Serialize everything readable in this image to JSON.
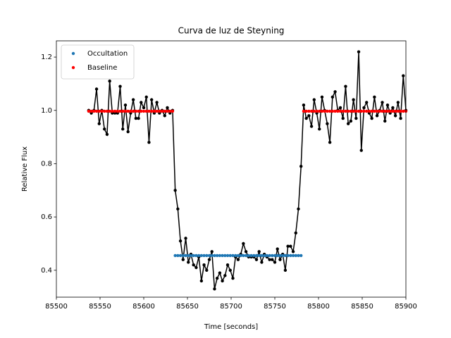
{
  "chart_data": {
    "type": "line",
    "title": "Curva de luz de Steyning",
    "x_label": "Time [seconds]",
    "y_label": "Relative Flux",
    "x": [
      85537,
      85540,
      85543,
      85546,
      85549,
      85552,
      85555,
      85558,
      85561,
      85564,
      85567,
      85570,
      85573,
      85576,
      85579,
      85582,
      85585,
      85588,
      85591,
      85594,
      85597,
      85600,
      85603,
      85606,
      85609,
      85612,
      85615,
      85618,
      85621,
      85624,
      85627,
      85630,
      85633,
      85636,
      85639,
      85642,
      85645,
      85648,
      85651,
      85654,
      85657,
      85660,
      85663,
      85666,
      85669,
      85672,
      85675,
      85678,
      85681,
      85684,
      85687,
      85690,
      85693,
      85696,
      85699,
      85702,
      85705,
      85708,
      85711,
      85714,
      85717,
      85720,
      85723,
      85726,
      85729,
      85732,
      85735,
      85738,
      85741,
      85744,
      85747,
      85750,
      85753,
      85756,
      85759,
      85762,
      85765,
      85768,
      85771,
      85774,
      85777,
      85780,
      85783,
      85786,
      85789,
      85792,
      85795,
      85798,
      85801,
      85804,
      85807,
      85810,
      85813,
      85816,
      85819,
      85822,
      85825,
      85828,
      85831,
      85834,
      85837,
      85840,
      85843,
      85846,
      85849,
      85852,
      85855,
      85858,
      85861,
      85864,
      85867,
      85870,
      85873,
      85876,
      85879,
      85882,
      85885,
      85888,
      85891,
      85894,
      85897,
      85900
    ],
    "series": [
      {
        "color": "#000000",
        "style": "line-dots",
        "values": [
          1.0,
          0.99,
          1.0,
          1.08,
          0.95,
          1.0,
          0.93,
          0.91,
          1.11,
          0.99,
          0.99,
          0.99,
          1.09,
          0.93,
          1.02,
          0.92,
          0.99,
          1.04,
          0.97,
          0.97,
          1.03,
          1.01,
          1.05,
          0.88,
          1.04,
          0.99,
          1.03,
          0.99,
          1.0,
          0.98,
          1.01,
          0.99,
          1.0,
          0.7,
          0.63,
          0.51,
          0.44,
          0.52,
          0.43,
          0.46,
          0.42,
          0.41,
          0.45,
          0.36,
          0.42,
          0.4,
          0.44,
          0.47,
          0.33,
          0.37,
          0.39,
          0.36,
          0.38,
          0.42,
          0.4,
          0.37,
          0.45,
          0.44,
          0.46,
          0.5,
          0.47,
          0.45,
          0.45,
          0.45,
          0.44,
          0.47,
          0.43,
          0.46,
          0.45,
          0.44,
          0.44,
          0.43,
          0.48,
          0.44,
          0.46,
          0.4,
          0.49,
          0.49,
          0.47,
          0.54,
          0.63,
          0.79,
          1.02,
          0.97,
          0.98,
          0.94,
          1.04,
          0.99,
          0.93,
          1.05,
          1.0,
          0.95,
          0.88,
          1.05,
          1.07,
          1.0,
          1.01,
          0.97,
          1.09,
          0.95,
          0.96,
          1.04,
          0.97,
          1.22,
          0.85,
          1.01,
          1.03,
          0.99,
          0.97,
          1.05,
          0.98,
          1.0,
          1.03,
          0.96,
          1.02,
          0.99,
          1.01,
          0.98,
          1.03,
          0.97,
          1.13,
          1.0
        ]
      },
      {
        "name": "Occultation",
        "color": "#1f77b4",
        "style": "dots",
        "values": [
          null,
          null,
          null,
          null,
          null,
          null,
          null,
          null,
          null,
          null,
          null,
          null,
          null,
          null,
          null,
          null,
          null,
          null,
          null,
          null,
          null,
          null,
          null,
          null,
          null,
          null,
          null,
          null,
          null,
          null,
          null,
          null,
          null,
          0.455,
          0.455,
          0.455,
          0.455,
          0.455,
          0.455,
          0.455,
          0.455,
          0.455,
          0.455,
          0.455,
          0.455,
          0.455,
          0.455,
          0.455,
          0.455,
          0.455,
          0.455,
          0.455,
          0.455,
          0.455,
          0.455,
          0.455,
          0.455,
          0.455,
          0.455,
          0.455,
          0.455,
          0.455,
          0.455,
          0.455,
          0.455,
          0.455,
          0.455,
          0.455,
          0.455,
          0.455,
          0.455,
          0.455,
          0.455,
          0.455,
          0.455,
          0.455,
          0.455,
          0.455,
          0.455,
          0.455,
          0.455,
          0.455,
          null,
          null,
          null,
          null,
          null,
          null,
          null,
          null,
          null,
          null,
          null,
          null,
          null,
          null,
          null,
          null,
          null,
          null,
          null,
          null,
          null,
          null,
          null,
          null,
          null,
          null,
          null,
          null,
          null,
          null,
          null,
          null,
          null,
          null,
          null,
          null,
          null,
          null,
          null,
          null
        ]
      },
      {
        "name": "Baseline",
        "color": "#ff0000",
        "style": "dots",
        "values": [
          0.997,
          0.997,
          0.997,
          0.997,
          0.997,
          0.997,
          0.997,
          0.997,
          0.997,
          0.997,
          0.997,
          0.997,
          0.997,
          0.997,
          0.997,
          0.997,
          0.997,
          0.997,
          0.997,
          0.997,
          0.997,
          0.997,
          0.997,
          0.997,
          0.997,
          0.997,
          0.997,
          0.997,
          0.997,
          0.997,
          0.997,
          0.997,
          0.997,
          null,
          null,
          null,
          null,
          null,
          null,
          null,
          null,
          null,
          null,
          null,
          null,
          null,
          null,
          null,
          null,
          null,
          null,
          null,
          null,
          null,
          null,
          null,
          null,
          null,
          null,
          null,
          null,
          null,
          null,
          null,
          null,
          null,
          null,
          null,
          null,
          null,
          null,
          null,
          null,
          null,
          null,
          null,
          null,
          null,
          null,
          null,
          null,
          null,
          0.997,
          0.997,
          0.997,
          0.997,
          0.997,
          0.997,
          0.997,
          0.997,
          0.997,
          0.997,
          0.997,
          0.997,
          0.997,
          0.997,
          0.997,
          0.997,
          0.997,
          0.997,
          0.997,
          0.997,
          0.997,
          0.997,
          0.997,
          0.997,
          0.997,
          0.997,
          0.997,
          0.997,
          0.997,
          0.997,
          0.997,
          0.997,
          0.997,
          0.997,
          0.997,
          0.997,
          0.997,
          0.997,
          0.997,
          0.997
        ]
      }
    ],
    "xlim": [
      85500,
      85900
    ],
    "xticks": [
      85500,
      85550,
      85600,
      85650,
      85700,
      85750,
      85800,
      85850,
      85900
    ],
    "ylim": [
      0.299,
      1.261
    ],
    "yticks": [
      0.4,
      0.6,
      0.8,
      {
        "value": 1,
        "label": "1.0"
      },
      1.2
    ],
    "legend": "upper left"
  }
}
